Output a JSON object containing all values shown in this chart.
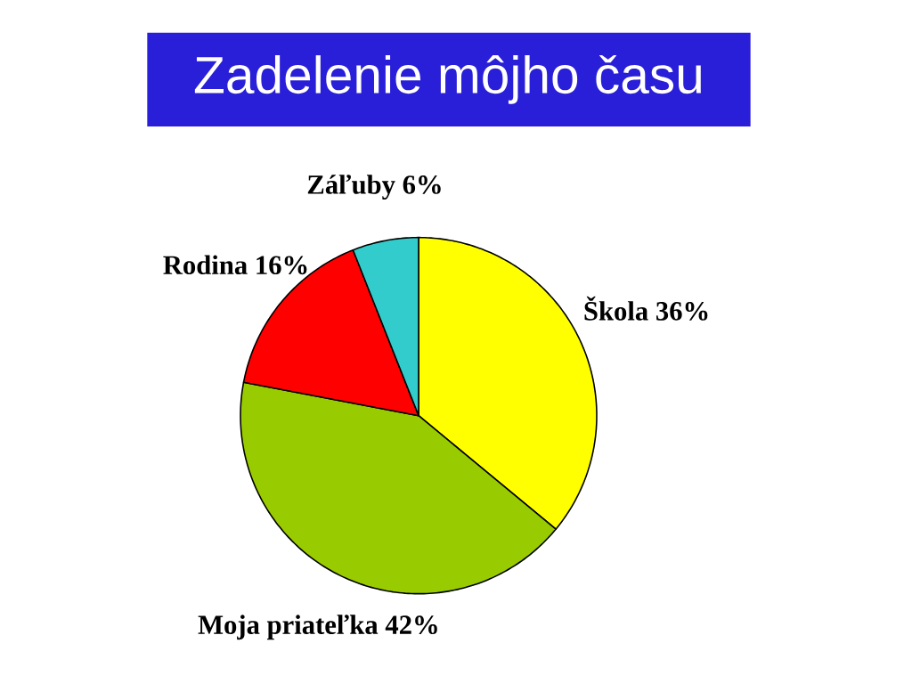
{
  "chart_data": {
    "type": "pie",
    "title": "Zadelenie môjho času",
    "categories": [
      "Škola",
      "Moja priateľka",
      "Rodina",
      "Záľuby"
    ],
    "values": [
      36,
      42,
      16,
      6
    ],
    "value_labels": [
      "36%",
      "42%",
      "16%",
      "6%"
    ],
    "colors": [
      "#ffff00",
      "#99cc00",
      "#ff0000",
      "#33cccc"
    ]
  }
}
